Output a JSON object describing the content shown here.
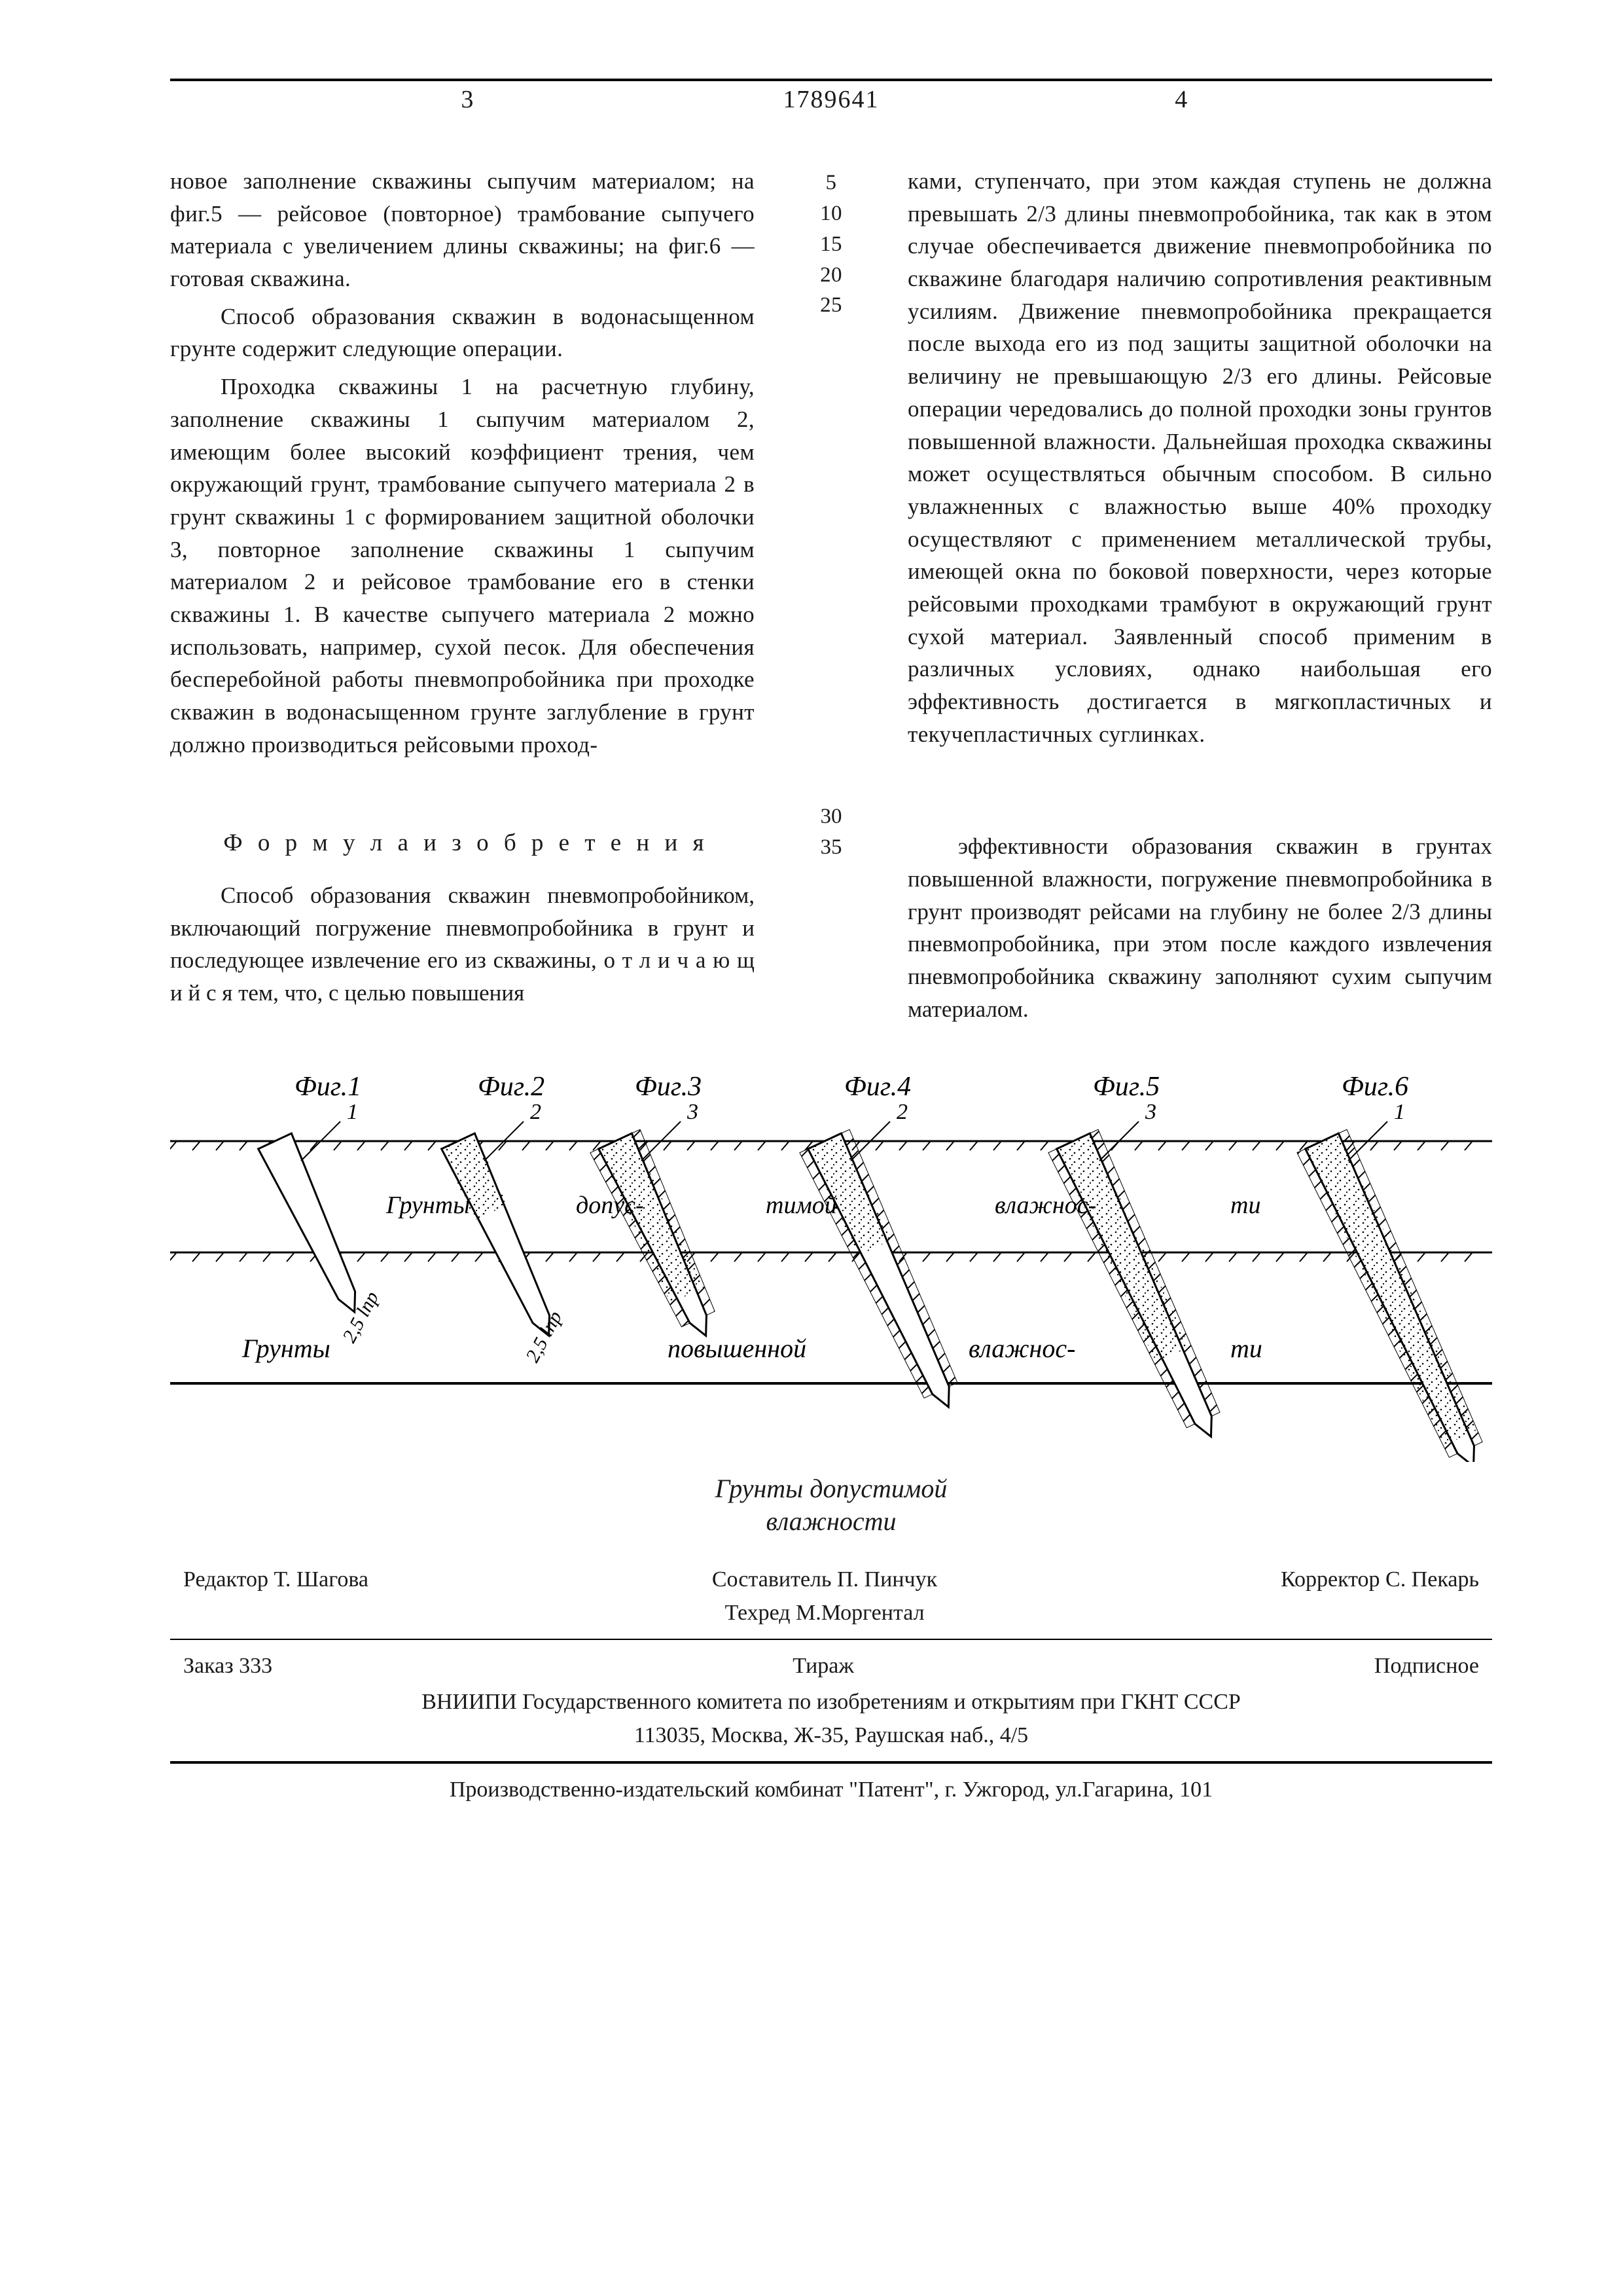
{
  "header": {
    "page_left": "3",
    "patent_number": "1789641",
    "page_right": "4"
  },
  "body": {
    "left_paragraphs": [
      "новое заполнение скважины сыпучим материалом; на фиг.5 — рейсовое (повторное) трамбование сыпучего материала с увеличением длины скважины; на фиг.6 — готовая скважина.",
      "Способ образования скважин в водонасыщенном грунте содержит следующие операции.",
      "Проходка скважины 1 на расчетную глубину, заполнение скважины 1 сыпучим материалом 2, имеющим более высокий коэффициент трения, чем окружающий грунт, трамбование сыпучего материала 2 в грунт скважины 1 с формированием защитной оболочки 3, повторное заполнение скважины 1 сыпучим материалом 2 и рейсовое трамбование его в стенки скважины 1. В качестве сыпучего материала 2 можно использовать, например, сухой песок. Для обеспечения бесперебойной работы пневмопробойника при проходке скважин в водонасыщенном грунте заглубление в грунт должно производиться рейсовыми проход-"
    ],
    "right_paragraphs": [
      "ками, ступенчато, при этом каждая ступень не должна превышать 2/3 длины пневмопробойника, так как в этом случае обеспечивается движение пневмопробойника по скважине благодаря наличию сопротивления реактивным усилиям. Движение пневмопробойника прекращается после выхода его из под защиты защитной оболочки на величину не превышающую 2/3 его длины. Рейсовые операции чередовались до полной проходки зоны грунтов повышенной влажности. Дальнейшая проходка скважины может осуществляться обычным способом. В сильно увлажненных с влажностью выше 40% проходку осуществляют с применением металлической трубы, имеющей окна по боковой поверхности, через которые рейсовыми проходками трамбуют в окружающий грунт сухой материал. Заявленный способ применим в различных условиях, однако наибольшая его эффективность достигается в мягкопластичных и текучепластичных суглинках."
    ],
    "gutter_numbers": [
      "",
      "",
      "",
      "",
      "5",
      "",
      "",
      "",
      "",
      "10",
      "",
      "",
      "",
      "",
      "15",
      "",
      "",
      "",
      "",
      "20",
      "",
      "",
      "",
      "",
      "25"
    ]
  },
  "claims": {
    "section_title": "Ф о р м у л а   и з о б р е т е н и я",
    "left": "Способ образования скважин пневмопробойником, включающий погружение пневмопробойника в грунт и последующее извлечение его из скважины, о т л и ч а ю щ и й с я  тем, что, с целью повышения",
    "right": "эффективности образования скважин в грунтах повышенной влажности, погружение пневмопробойника в грунт производят рейсами на глубину не более 2/3 длины пневмопробойника, при этом после каждого извлечения пневмопробойника скважину заполняют сухим сыпучим материалом.",
    "gutter_numbers": [
      "",
      "30",
      "",
      "",
      "",
      "",
      "35"
    ]
  },
  "figure": {
    "labels": [
      "Фиг.1",
      "Фиг.2",
      "Фиг.3",
      "Фиг.4",
      "Фиг.5",
      "Фиг.6"
    ],
    "callouts": [
      "1",
      "2",
      "3",
      "2",
      "3",
      "1"
    ],
    "ground_top": "Грунты   допус-   тимой   влажнос-   ти",
    "ground_left": "Грунты",
    "ground_mid": "повышенной   влажнос-   ти",
    "depth_label_1": "2,5 lпр",
    "depth_label_2": "2,5 lпр",
    "caption_below": "Грунты допустимой\nвлажности",
    "stroke": "#000000",
    "hatch_spacing": 16,
    "panel_count": 6
  },
  "colophon": {
    "editor": "Редактор Т. Шагова",
    "compiler": "Составитель П. Пинчук",
    "typeset": "Техред М.Моргентал",
    "proofreader": "Корректор С. Пекарь",
    "order": "Заказ 333",
    "print_run": "Тираж",
    "subscription": "Подписное",
    "institute": "ВНИИПИ Государственного комитета по изобретениям и открытиям при ГКНТ СССР",
    "address1": "113035, Москва, Ж-35, Раушская наб., 4/5",
    "printer": "Производственно-издательский комбинат \"Патент\", г. Ужгород, ул.Гагарина, 101"
  }
}
